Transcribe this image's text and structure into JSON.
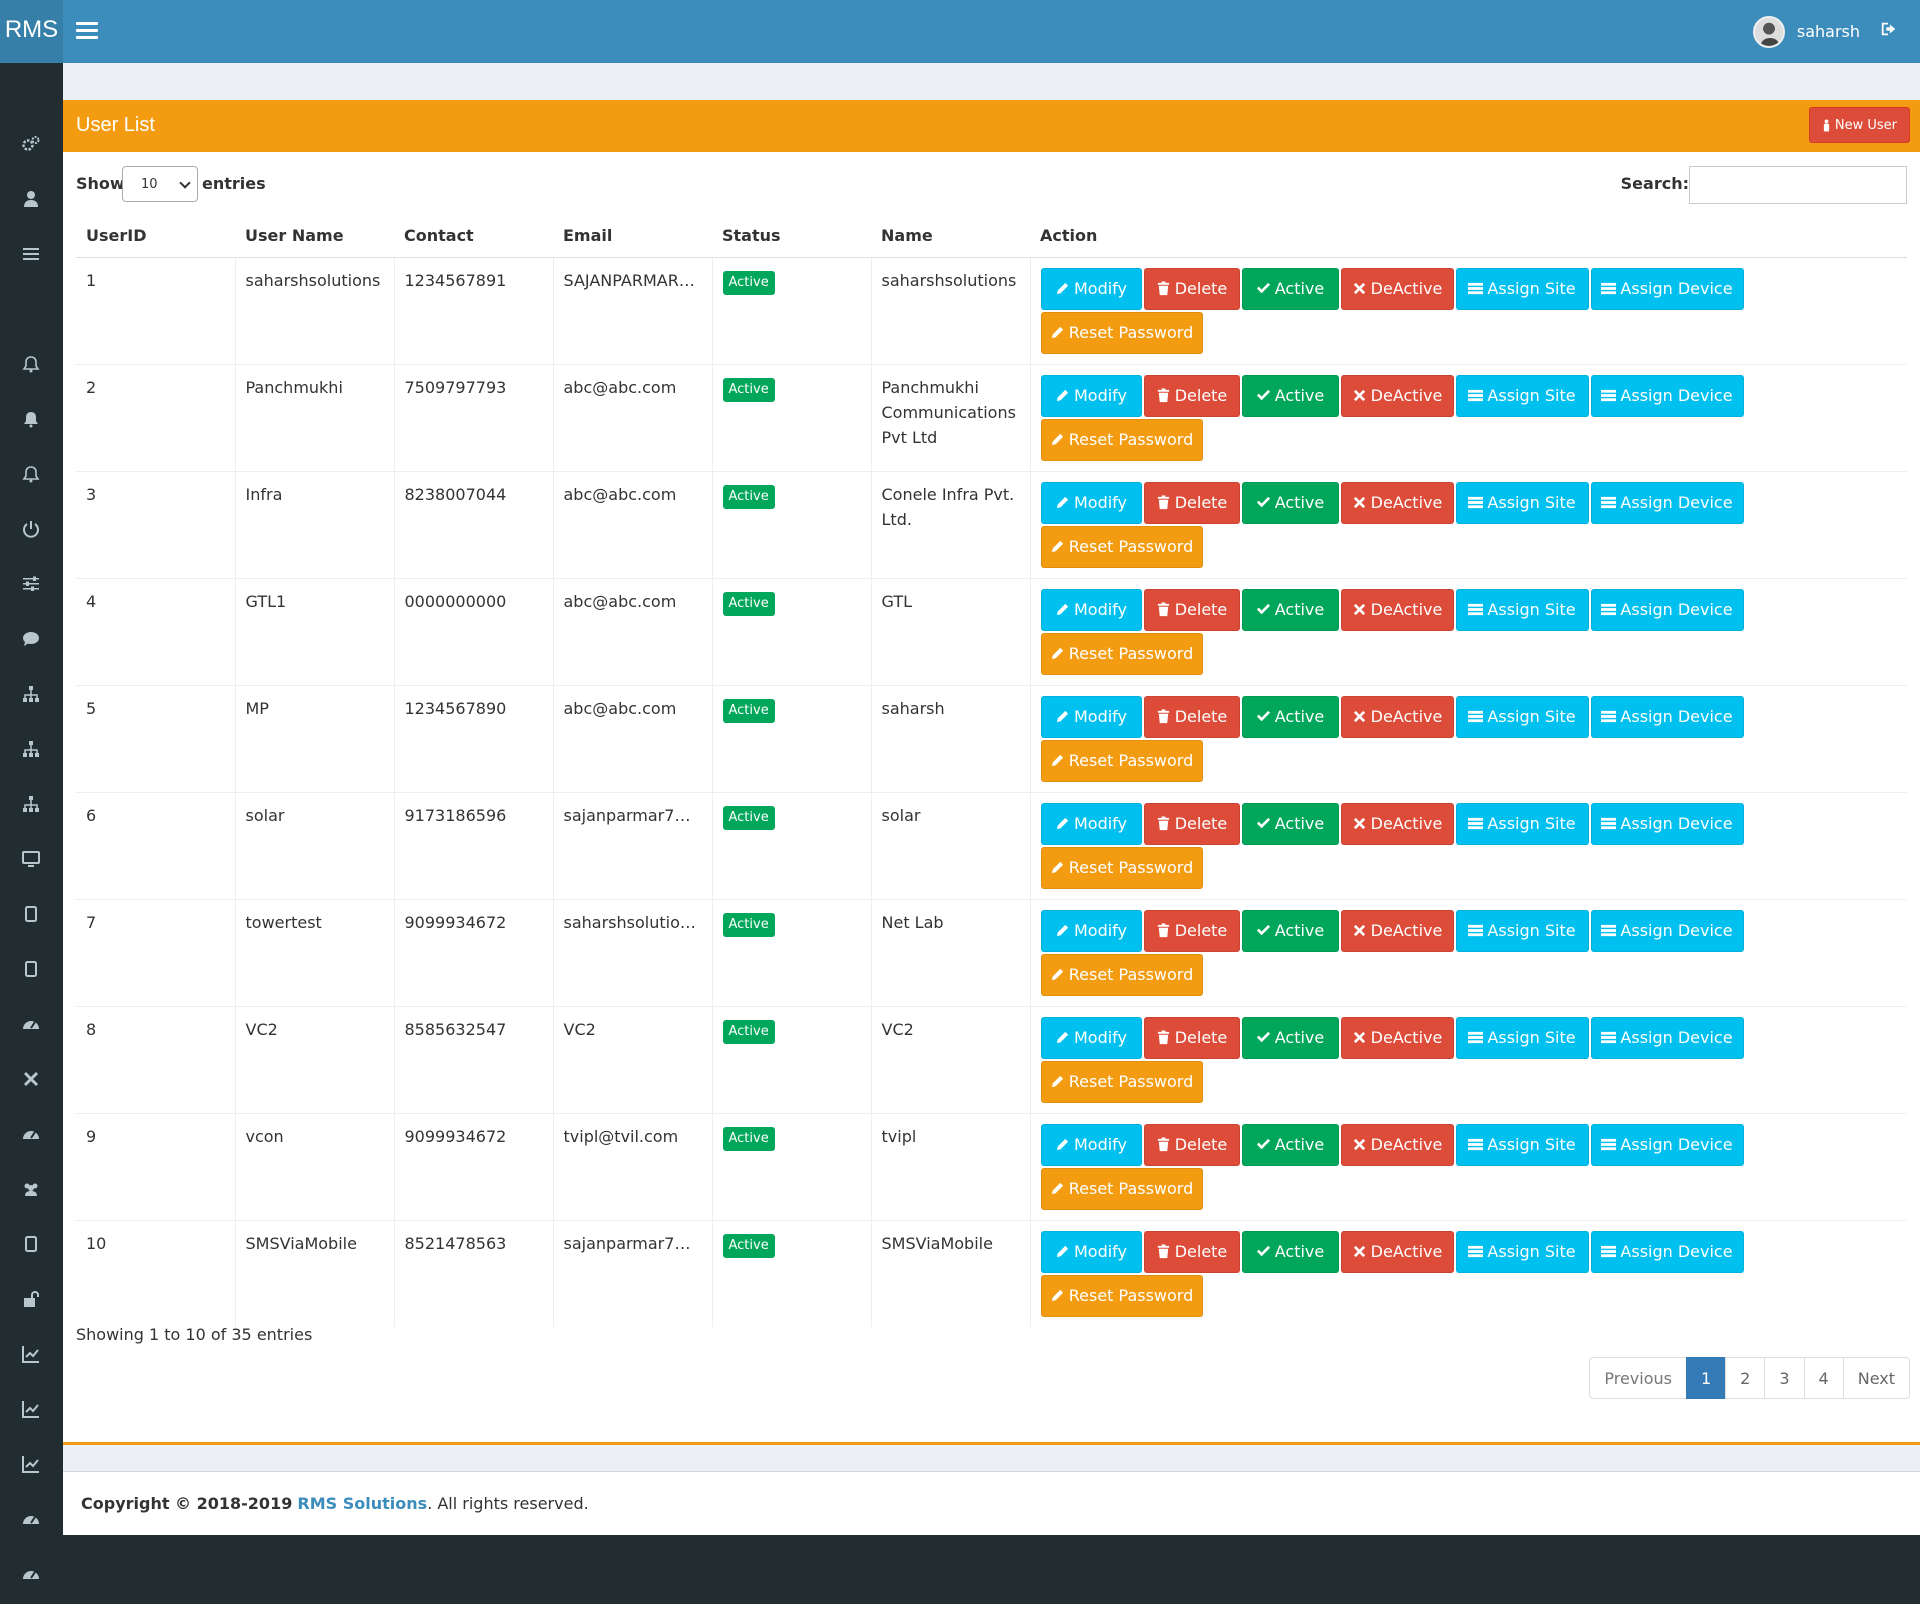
{
  "header": {
    "logo": "RMS",
    "user_name": "saharsh"
  },
  "sidebar": {
    "icons": [
      "gears-icon",
      "user-icon",
      "list-icon",
      "bell-outline-icon",
      "bell-icon",
      "bell-outline-icon",
      "power-icon",
      "sliders-icon",
      "comment-icon",
      "sitemap-icon",
      "sitemap-icon",
      "sitemap-icon",
      "desktop-icon",
      "tablet-icon",
      "tablet-icon",
      "dashboard-icon",
      "close-icon",
      "dashboard-icon",
      "users-icon",
      "tablet-icon",
      "unlock-icon",
      "line-chart-icon",
      "line-chart-icon",
      "line-chart-icon",
      "dashboard-icon",
      "dashboard-icon"
    ]
  },
  "box": {
    "title": "User List",
    "new_user_label": "New User"
  },
  "controls": {
    "show_label": "Show",
    "length_value": "10",
    "entries_label": "entries",
    "search_label": "Search:"
  },
  "table": {
    "columns": [
      "UserID",
      "User Name",
      "Contact",
      "Email",
      "Status",
      "Name",
      "Action"
    ],
    "rows": [
      {
        "id": "1",
        "username": "saharshsolutions",
        "contact": "1234567891",
        "email": "SAJANPARMAR7…",
        "status": "Active",
        "name": "saharshsolutions"
      },
      {
        "id": "2",
        "username": "Panchmukhi",
        "contact": "7509797793",
        "email": "abc@abc.com",
        "status": "Active",
        "name": "Panchmukhi Communications Pvt Ltd"
      },
      {
        "id": "3",
        "username": "Infra",
        "contact": "8238007044",
        "email": "abc@abc.com",
        "status": "Active",
        "name": "Conele Infra Pvt. Ltd."
      },
      {
        "id": "4",
        "username": "GTL1",
        "contact": "0000000000",
        "email": "abc@abc.com",
        "status": "Active",
        "name": "GTL"
      },
      {
        "id": "5",
        "username": "MP",
        "contact": "1234567890",
        "email": "abc@abc.com",
        "status": "Active",
        "name": "saharsh"
      },
      {
        "id": "6",
        "username": "solar",
        "contact": "9173186596",
        "email": "sajanparmar7@…",
        "status": "Active",
        "name": "solar"
      },
      {
        "id": "7",
        "username": "towertest",
        "contact": "9099934672",
        "email": "saharshsolution…",
        "status": "Active",
        "name": "Net Lab"
      },
      {
        "id": "8",
        "username": "VC2",
        "contact": "8585632547",
        "email": "VC2",
        "status": "Active",
        "name": "VC2"
      },
      {
        "id": "9",
        "username": "vcon",
        "contact": "9099934672",
        "email": "tvipl@tvil.com",
        "status": "Active",
        "name": "tvipl"
      },
      {
        "id": "10",
        "username": "SMSViaMobile",
        "contact": "8521478563",
        "email": "sajanparmar7@…",
        "status": "Active",
        "name": "SMSViaMobile"
      }
    ],
    "action_labels": {
      "modify": "Modify",
      "delete": "Delete",
      "active": "Active",
      "deactive": "DeActive",
      "assign_site": "Assign Site",
      "assign_device": "Assign Device",
      "reset_password": "Reset Password"
    }
  },
  "info": "Showing 1 to 10 of 35 entries",
  "pagination": {
    "previous": "Previous",
    "pages": [
      "1",
      "2",
      "3",
      "4"
    ],
    "current": "1",
    "next": "Next"
  },
  "footer": {
    "copyright": "Copyright © 2018-2019",
    "brand": "RMS Solutions",
    "suffix": ". All rights reserved."
  },
  "colors": {
    "header": "#3c8dbc",
    "box_header": "#f39c12",
    "info_button": "#00c0ef",
    "danger_button": "#dd4b39",
    "success_button": "#00a65a",
    "warning_button": "#f39c12",
    "sidebar": "#222d32"
  }
}
